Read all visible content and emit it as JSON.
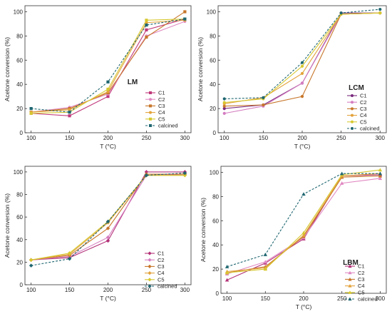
{
  "chart_data": [
    {
      "type": "line",
      "title": "LM",
      "xlabel": "T (°C)",
      "ylabel": "Acetone conversion (%)",
      "x": [
        100,
        150,
        200,
        250,
        300
      ],
      "xlim": [
        92,
        308
      ],
      "ylim": [
        0,
        105
      ],
      "xticks": [
        "100",
        "150",
        "200",
        "250",
        "300"
      ],
      "yticks": [
        "0",
        "20",
        "40",
        "60",
        "80",
        "100"
      ],
      "legend_position": "right",
      "series": [
        {
          "name": "C1",
          "values": [
            16,
            14,
            30,
            85,
            94
          ],
          "color": "#c0397a",
          "marker": "square",
          "dash": false
        },
        {
          "name": "C2",
          "values": [
            17,
            21,
            32,
            80,
            92
          ],
          "color": "#e089c2",
          "marker": "circle",
          "dash": false
        },
        {
          "name": "C3",
          "values": [
            17,
            20,
            33,
            79,
            100
          ],
          "color": "#c7762a",
          "marker": "square",
          "dash": false
        },
        {
          "name": "C4",
          "values": [
            17,
            19,
            34,
            91,
            93
          ],
          "color": "#e3a23a",
          "marker": "circle",
          "dash": false
        },
        {
          "name": "C5",
          "values": [
            16,
            17,
            36,
            93,
            94
          ],
          "color": "#d6c830",
          "marker": "square",
          "dash": false
        },
        {
          "name": "calcined",
          "values": [
            20,
            17,
            42,
            89,
            94
          ],
          "color": "#1f6670",
          "marker": "square",
          "dash": true
        }
      ]
    },
    {
      "type": "line",
      "title": "LCM",
      "xlabel": "T (°C)",
      "ylabel": "Acetone conversion (%)",
      "x": [
        100,
        150,
        200,
        250,
        300
      ],
      "xlim": [
        92,
        308
      ],
      "ylim": [
        0,
        105
      ],
      "xticks": [
        "100",
        "150",
        "200",
        "250",
        "300"
      ],
      "yticks": [
        "0",
        "20",
        "40",
        "60",
        "80",
        "100"
      ],
      "legend_position": "right",
      "series": [
        {
          "name": "C1",
          "values": [
            20,
            23,
            41,
            99,
            99
          ],
          "color": "#7a2a7e",
          "marker": "circle",
          "dash": false
        },
        {
          "name": "C2",
          "values": [
            16,
            22,
            41,
            98,
            99
          ],
          "color": "#d47dc0",
          "marker": "circle",
          "dash": false
        },
        {
          "name": "C3",
          "values": [
            22,
            23,
            30,
            98,
            99
          ],
          "color": "#c7762a",
          "marker": "circle",
          "dash": false
        },
        {
          "name": "C4",
          "values": [
            24,
            29,
            49,
            98,
            99
          ],
          "color": "#e3a23a",
          "marker": "circle",
          "dash": false
        },
        {
          "name": "C5",
          "values": [
            25,
            28,
            55,
            98,
            99
          ],
          "color": "#d6c830",
          "marker": "circle",
          "dash": false
        },
        {
          "name": "calcined",
          "values": [
            28,
            29,
            58,
            99,
            102
          ],
          "color": "#1f6670",
          "marker": "circle",
          "dash": true
        }
      ]
    },
    {
      "type": "line",
      "title": "LSM",
      "xlabel": "T (°C)",
      "ylabel": "Acetone conversion (%)",
      "x": [
        100,
        150,
        200,
        250,
        300
      ],
      "xlim": [
        92,
        308
      ],
      "ylim": [
        0,
        105
      ],
      "xticks": [
        "100",
        "150",
        "200",
        "250",
        "300"
      ],
      "yticks": [
        "0",
        "20",
        "40",
        "60",
        "80",
        "100"
      ],
      "legend_position": "right",
      "series": [
        {
          "name": "C1",
          "values": [
            22,
            24,
            39,
            100,
            100
          ],
          "color": "#b43278",
          "marker": "diamond",
          "dash": false
        },
        {
          "name": "C2",
          "values": [
            22,
            25,
            42,
            97,
            98
          ],
          "color": "#d47dc0",
          "marker": "diamond",
          "dash": false
        },
        {
          "name": "C3",
          "values": [
            22,
            26,
            50,
            98,
            98
          ],
          "color": "#c7762a",
          "marker": "diamond",
          "dash": false
        },
        {
          "name": "C4",
          "values": [
            22,
            27,
            55,
            97,
            97
          ],
          "color": "#e3a23a",
          "marker": "diamond",
          "dash": false
        },
        {
          "name": "C5",
          "values": [
            22,
            28,
            56,
            97,
            97
          ],
          "color": "#d6c830",
          "marker": "diamond",
          "dash": false
        },
        {
          "name": "calcined",
          "values": [
            17,
            23,
            56,
            97,
            99
          ],
          "color": "#1f6670",
          "marker": "diamond",
          "dash": true
        }
      ]
    },
    {
      "type": "line",
      "title": "LBM",
      "xlabel": "T (°C)",
      "ylabel": "Acetone conversion (%)",
      "x": [
        100,
        150,
        200,
        250,
        300
      ],
      "xlim": [
        92,
        308
      ],
      "ylim": [
        0,
        105
      ],
      "xticks": [
        "100",
        "150",
        "200",
        "250",
        "300"
      ],
      "yticks": [
        "0",
        "20",
        "40",
        "60",
        "80",
        "100"
      ],
      "legend_position": "right",
      "series": [
        {
          "name": "C1",
          "values": [
            11,
            25,
            45,
            97,
            98
          ],
          "color": "#b43278",
          "marker": "triangle",
          "dash": false
        },
        {
          "name": "C2",
          "values": [
            16,
            26,
            46,
            91,
            95
          ],
          "color": "#e089c2",
          "marker": "triangle",
          "dash": false
        },
        {
          "name": "C3",
          "values": [
            17,
            22,
            47,
            96,
            97
          ],
          "color": "#c7762a",
          "marker": "triangle",
          "dash": false
        },
        {
          "name": "C4",
          "values": [
            18,
            21,
            48,
            97,
            99
          ],
          "color": "#e3a23a",
          "marker": "triangle",
          "dash": false
        },
        {
          "name": "C5",
          "values": [
            17,
            20,
            50,
            98,
            102
          ],
          "color": "#d6c830",
          "marker": "triangle",
          "dash": false
        },
        {
          "name": "calcined",
          "values": [
            22,
            32,
            82,
            99,
            99
          ],
          "color": "#1f6670",
          "marker": "triangle",
          "dash": true
        }
      ]
    }
  ]
}
